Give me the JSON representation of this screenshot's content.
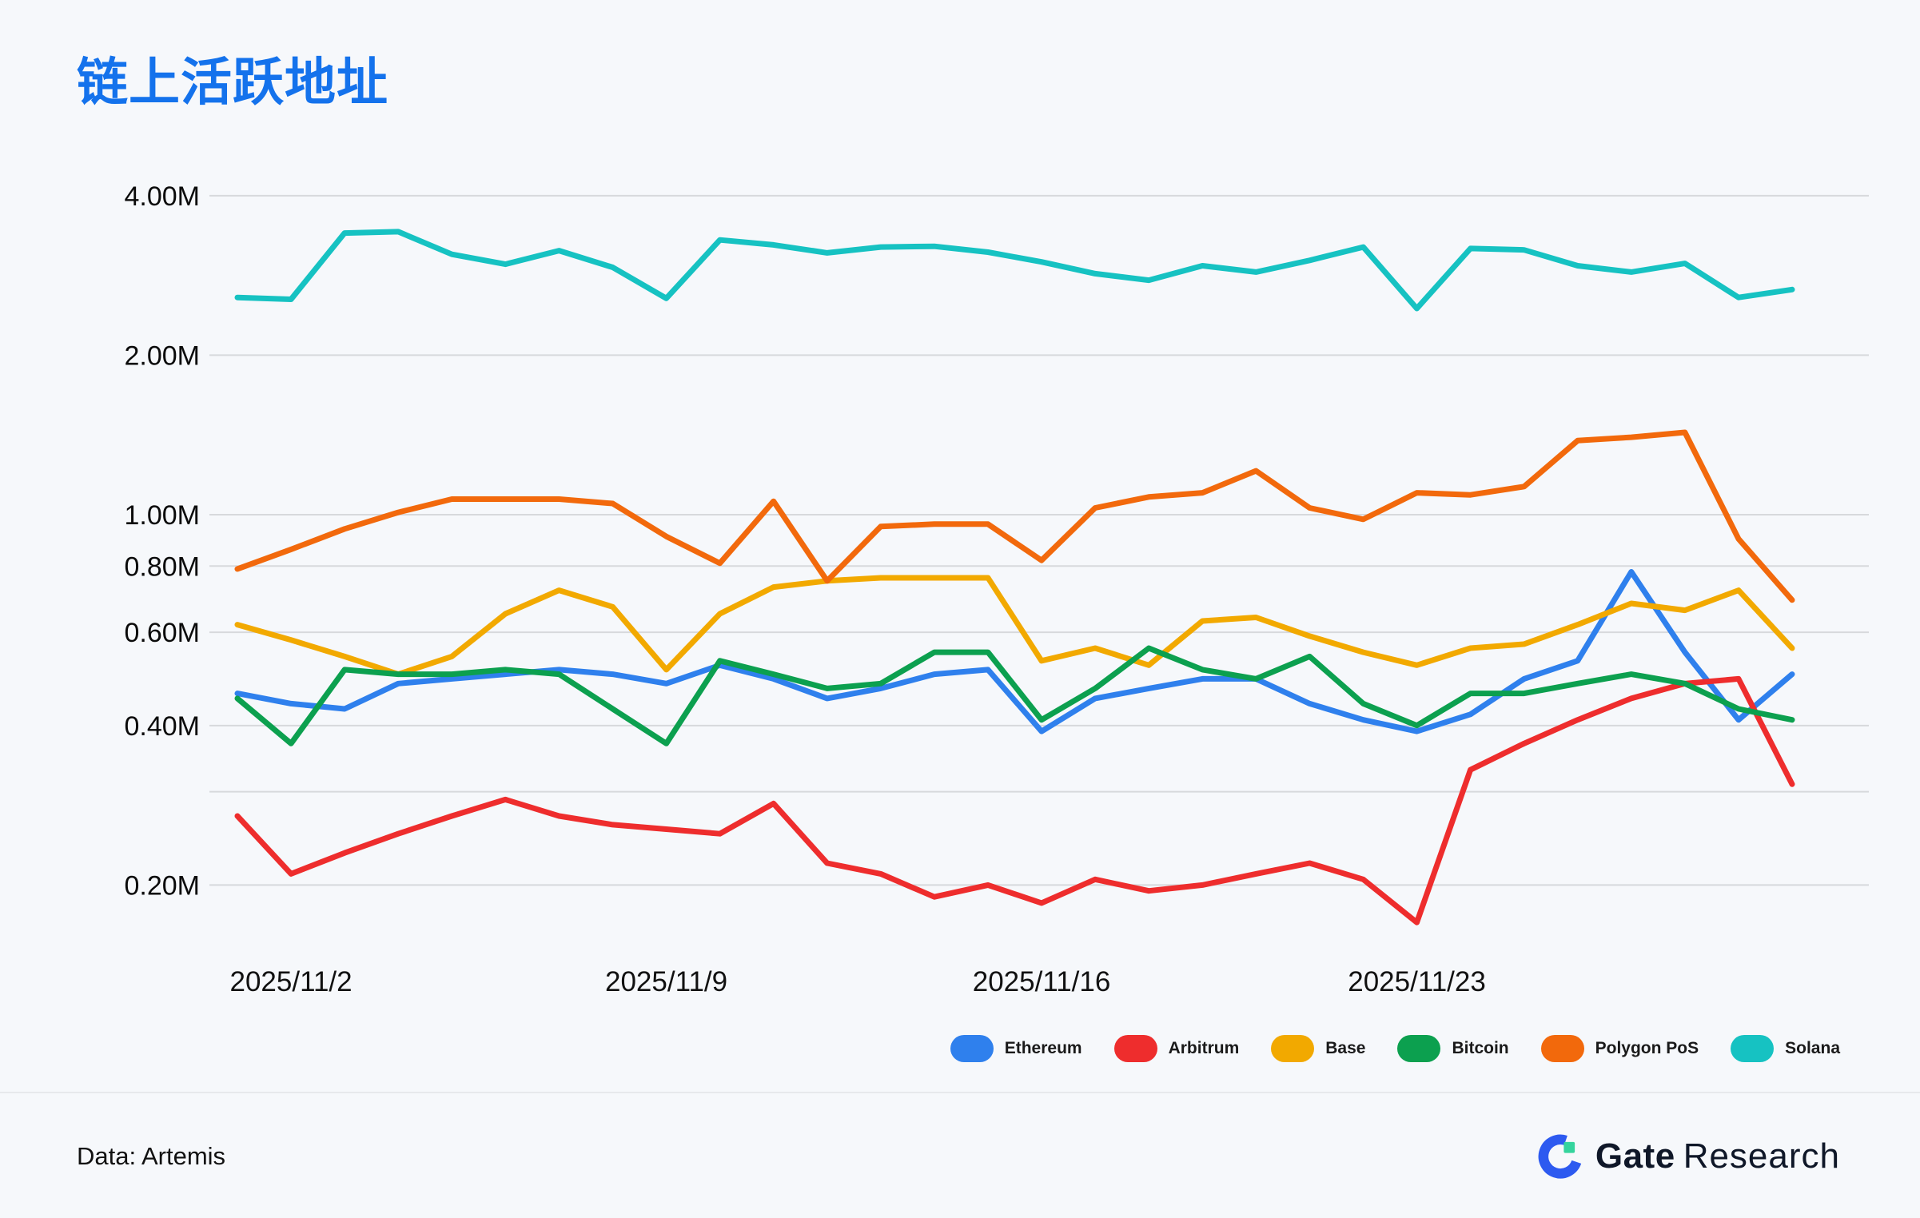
{
  "title": "链上活跃地址",
  "footer": {
    "source": "Data: Artemis",
    "brand_bold": "Gate",
    "brand_light": "Research",
    "logo_colors": {
      "ring_blue": "#2d5af0",
      "square_green": "#35d49d",
      "text_dark": "#0f1728"
    }
  },
  "chart_data": {
    "type": "line",
    "title": "链上活跃地址",
    "values_unit": "millions of active addresses",
    "y_axis": {
      "scale": "log",
      "ticks": [
        {
          "value": 4.0,
          "label": "4.00M"
        },
        {
          "value": 2.0,
          "label": "2.00M"
        },
        {
          "value": 1.0,
          "label": "1.00M"
        },
        {
          "value": 0.8,
          "label": "0.80M"
        },
        {
          "value": 0.6,
          "label": "0.60M"
        },
        {
          "value": 0.4,
          "label": "0.40M"
        },
        {
          "value": 0.3,
          "label": ""
        },
        {
          "value": 0.2,
          "label": "0.20M"
        }
      ]
    },
    "x": [
      "2025/11/1",
      "2025/11/2",
      "2025/11/3",
      "2025/11/4",
      "2025/11/5",
      "2025/11/6",
      "2025/11/7",
      "2025/11/8",
      "2025/11/9",
      "2025/11/10",
      "2025/11/11",
      "2025/11/12",
      "2025/11/13",
      "2025/11/14",
      "2025/11/15",
      "2025/11/16",
      "2025/11/17",
      "2025/11/18",
      "2025/11/19",
      "2025/11/20",
      "2025/11/21",
      "2025/11/22",
      "2025/11/23",
      "2025/11/24",
      "2025/11/25",
      "2025/11/26",
      "2025/11/27",
      "2025/11/28",
      "2025/11/29",
      "2025/11/30"
    ],
    "x_tick_labels": [
      {
        "label": "2025/11/2",
        "index": 1
      },
      {
        "label": "2025/11/9",
        "index": 8
      },
      {
        "label": "2025/11/16",
        "index": 15
      },
      {
        "label": "2025/11/23",
        "index": 22
      }
    ],
    "grid": true,
    "legend_position": "bottom-right",
    "series": [
      {
        "name": "Ethereum",
        "color": "#2f80ed",
        "values": [
          0.46,
          0.44,
          0.43,
          0.48,
          0.49,
          0.5,
          0.51,
          0.5,
          0.48,
          0.52,
          0.49,
          0.45,
          0.47,
          0.5,
          0.51,
          0.39,
          0.45,
          0.47,
          0.49,
          0.49,
          0.44,
          0.41,
          0.39,
          0.42,
          0.49,
          0.53,
          0.78,
          0.55,
          0.41,
          0.5
        ]
      },
      {
        "name": "Arbitrum",
        "color": "#ee2d2d",
        "values": [
          0.27,
          0.21,
          0.23,
          0.25,
          0.27,
          0.29,
          0.27,
          0.26,
          0.255,
          0.25,
          0.285,
          0.22,
          0.21,
          0.19,
          0.2,
          0.185,
          0.205,
          0.195,
          0.2,
          0.21,
          0.22,
          0.205,
          0.17,
          0.33,
          0.37,
          0.41,
          0.45,
          0.48,
          0.49,
          0.31
        ]
      },
      {
        "name": "Base",
        "color": "#f2a900",
        "values": [
          0.62,
          0.58,
          0.54,
          0.5,
          0.54,
          0.65,
          0.72,
          0.67,
          0.51,
          0.65,
          0.73,
          0.75,
          0.76,
          0.76,
          0.76,
          0.53,
          0.56,
          0.52,
          0.63,
          0.64,
          0.59,
          0.55,
          0.52,
          0.56,
          0.57,
          0.62,
          0.68,
          0.66,
          0.72,
          0.56
        ]
      },
      {
        "name": "Bitcoin",
        "color": "#0ca04f",
        "values": [
          0.45,
          0.37,
          0.51,
          0.5,
          0.5,
          0.51,
          0.5,
          0.43,
          0.37,
          0.53,
          0.5,
          0.47,
          0.48,
          0.55,
          0.55,
          0.41,
          0.47,
          0.56,
          0.51,
          0.49,
          0.54,
          0.44,
          0.4,
          0.46,
          0.46,
          0.48,
          0.5,
          0.48,
          0.43,
          0.41
        ]
      },
      {
        "name": "Polygon PoS",
        "color": "#f2690c",
        "values": [
          0.79,
          0.86,
          0.94,
          1.01,
          1.07,
          1.07,
          1.07,
          1.05,
          0.91,
          0.81,
          1.06,
          0.75,
          0.95,
          0.96,
          0.96,
          0.82,
          1.03,
          1.08,
          1.1,
          1.21,
          1.03,
          0.98,
          1.1,
          1.09,
          1.13,
          1.38,
          1.4,
          1.43,
          0.9,
          0.69
        ]
      },
      {
        "name": "Solana",
        "color": "#16c2c2",
        "values": [
          2.57,
          2.55,
          3.4,
          3.42,
          3.1,
          2.97,
          3.15,
          2.93,
          2.56,
          3.3,
          3.23,
          3.12,
          3.2,
          3.21,
          3.13,
          3.0,
          2.85,
          2.77,
          2.95,
          2.87,
          3.02,
          3.2,
          2.45,
          3.18,
          3.16,
          2.95,
          2.87,
          2.98,
          2.57,
          2.66
        ]
      }
    ]
  }
}
